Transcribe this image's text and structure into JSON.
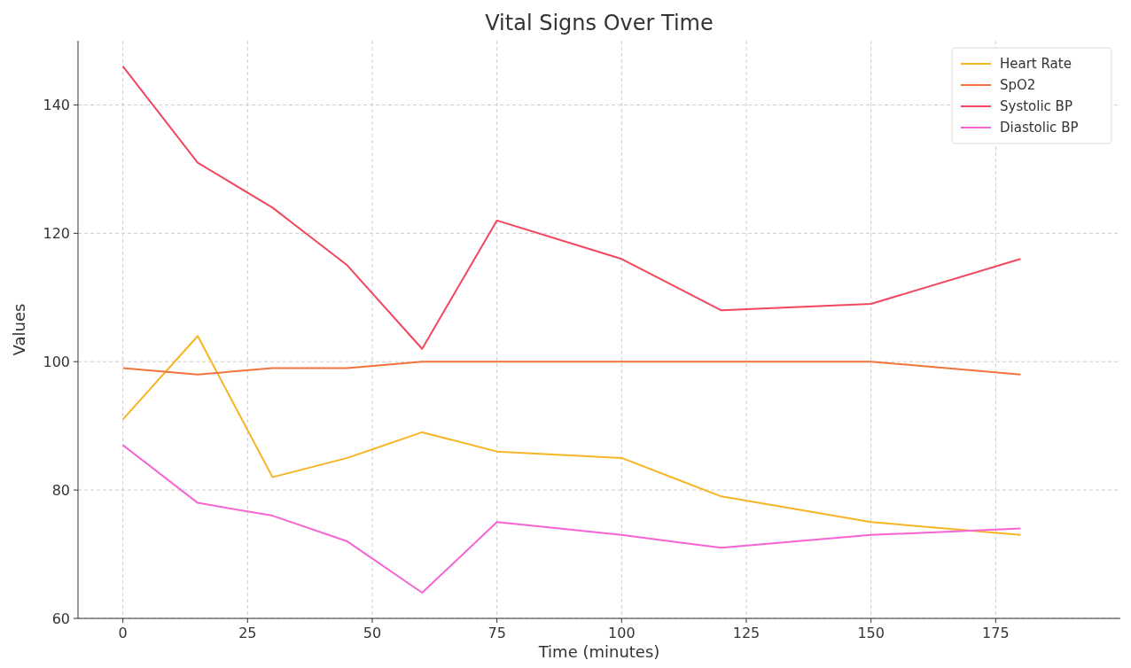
{
  "chart_data": {
    "type": "line",
    "title": "Vital Signs Over Time",
    "xlabel": "Time (minutes)",
    "ylabel": "Values",
    "x": [
      0,
      15,
      30,
      45,
      60,
      75,
      100,
      120,
      150,
      180
    ],
    "series": [
      {
        "name": "Heart Rate",
        "color": "#f7b425",
        "values": [
          91,
          104,
          82,
          85,
          89,
          86,
          85,
          79,
          75,
          73
        ]
      },
      {
        "name": "SpO2",
        "color": "#f2743c",
        "values": [
          99,
          98,
          99,
          99,
          100,
          100,
          100,
          100,
          100,
          98
        ]
      },
      {
        "name": "Systolic BP",
        "color": "#f2475e",
        "values": [
          146,
          131,
          124,
          115,
          102,
          122,
          116,
          108,
          109,
          116
        ]
      },
      {
        "name": "Diastolic BP",
        "color": "#f564d2",
        "values": [
          87,
          78,
          76,
          72,
          64,
          75,
          73,
          71,
          73,
          74
        ]
      }
    ],
    "xlim": [
      -9,
      200
    ],
    "ylim": [
      60,
      150
    ],
    "xticks": [
      0,
      25,
      50,
      75,
      100,
      125,
      150,
      175
    ],
    "yticks": [
      60,
      80,
      100,
      120,
      140
    ],
    "grid": true,
    "legend": "top right",
    "marker": "none",
    "line_style": "solid"
  }
}
